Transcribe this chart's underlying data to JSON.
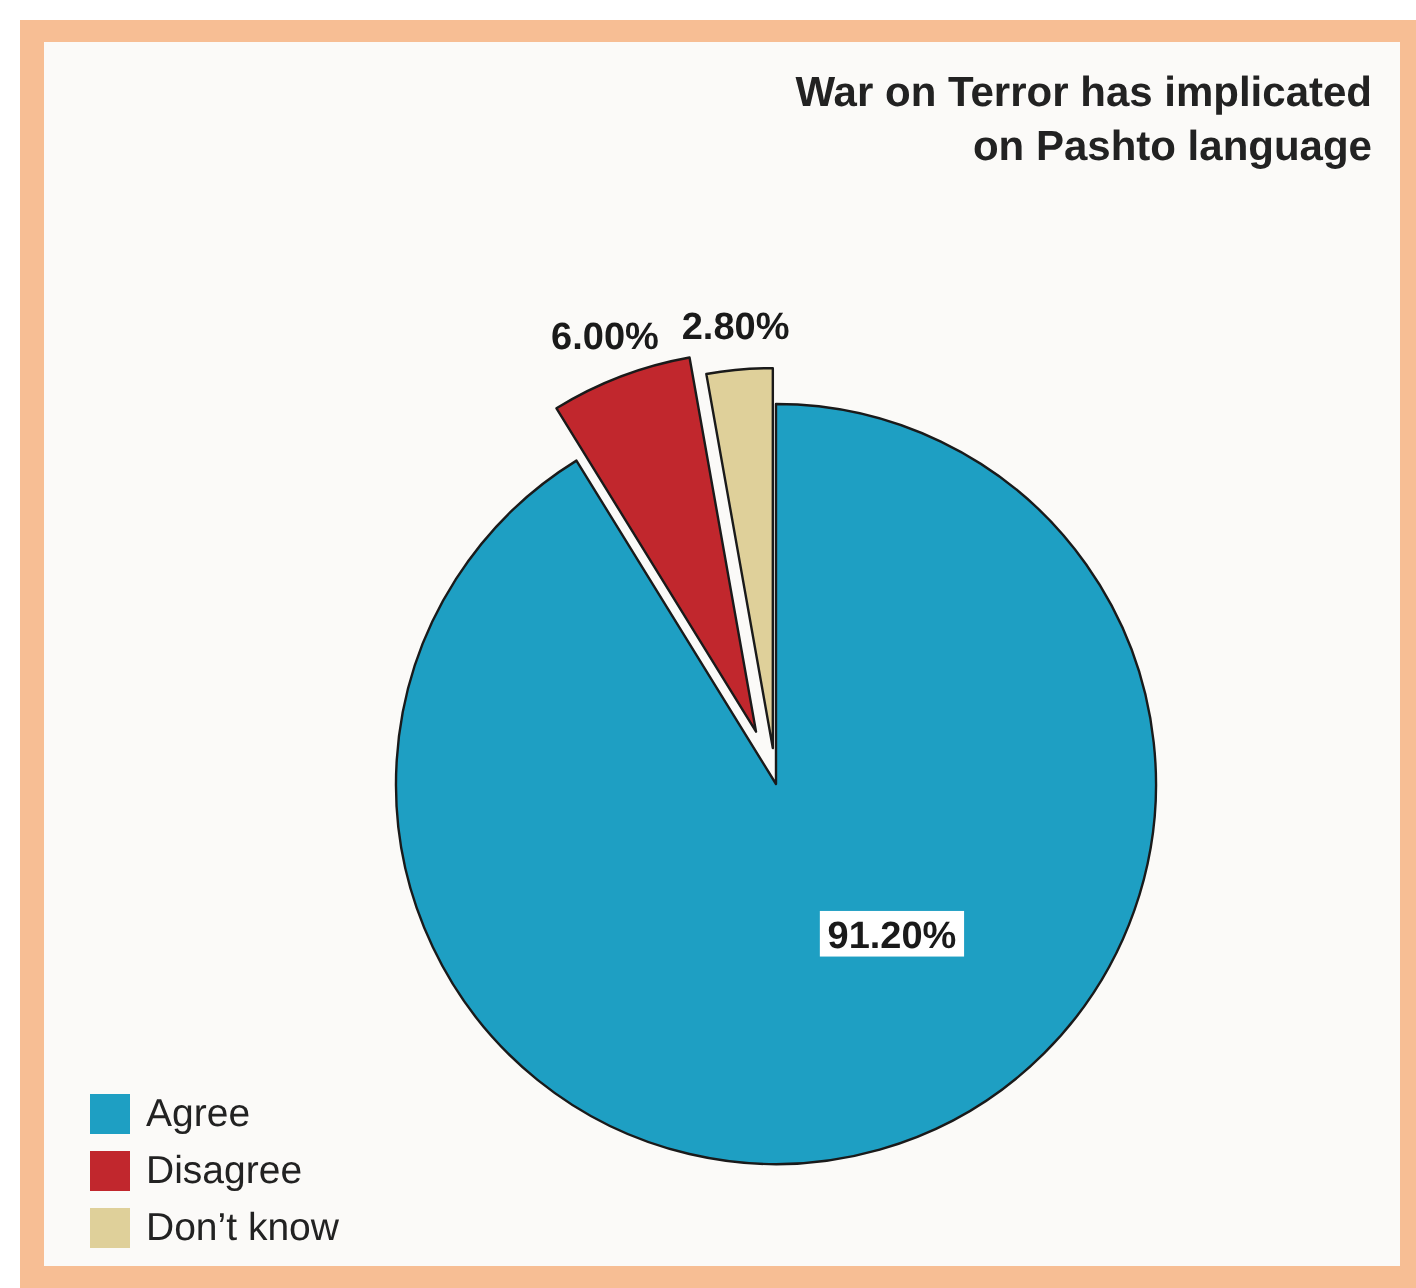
{
  "chart_data": {
    "type": "pie",
    "title": "War on Terror has implicated on Pashto language",
    "categories": [
      "Agree",
      "Disagree",
      "Don’t know"
    ],
    "values": [
      91.2,
      6.0,
      2.8
    ],
    "colors": [
      "#1e9fc3",
      "#c1272d",
      "#dfd09a"
    ],
    "value_labels": [
      "91.20%",
      "6.00%",
      "2.80%"
    ],
    "legend": "bottom left"
  }
}
